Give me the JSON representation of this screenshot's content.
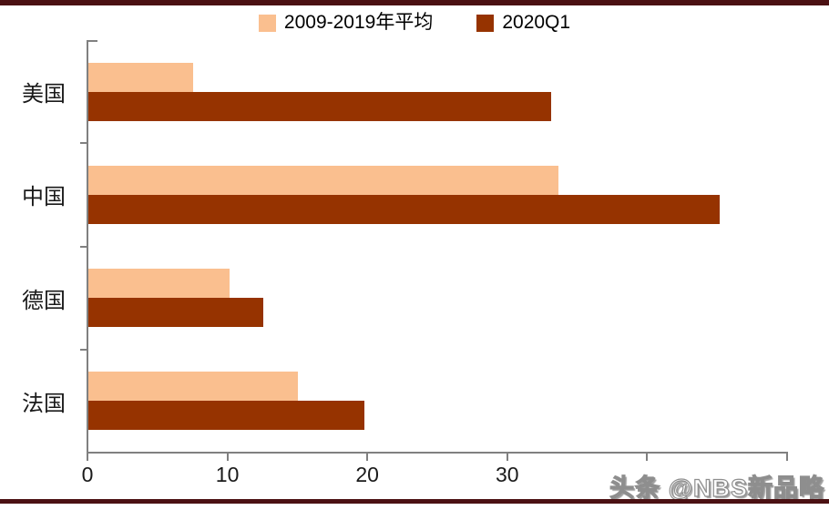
{
  "styles": {
    "border_line_color": "#4b1113",
    "axis_color": "#808080",
    "series1_color": "#FABF8F",
    "series2_color": "#963300",
    "background_color": "#ffffff"
  },
  "legend": {
    "items": [
      {
        "label": "2009-2019年平均",
        "color": "#FABF8F"
      },
      {
        "label": "2020Q1",
        "color": "#963300"
      }
    ]
  },
  "chart_data": {
    "type": "bar",
    "orientation": "horizontal",
    "title": "",
    "xlabel": "",
    "ylabel": "",
    "categories": [
      "美国",
      "中国",
      "德国",
      "法国"
    ],
    "series": [
      {
        "name": "2009-2019年平均",
        "color": "#FABF8F",
        "values": [
          7.5,
          33.6,
          10.1,
          15.0
        ]
      },
      {
        "name": "2020Q1",
        "color": "#963300",
        "values": [
          33.1,
          45.1,
          12.5,
          19.7
        ]
      }
    ],
    "xlim": [
      0,
      50
    ],
    "xticks": [
      {
        "value": 0,
        "label": "0"
      },
      {
        "value": 10,
        "label": "10"
      },
      {
        "value": 20,
        "label": "20"
      },
      {
        "value": 30,
        "label": "30"
      },
      {
        "value": 40,
        "label": ""
      },
      {
        "value": 50,
        "label": ""
      }
    ],
    "grid": false,
    "legend_position": "top-center"
  },
  "watermark": {
    "text": "头条 @NBS新品略"
  }
}
